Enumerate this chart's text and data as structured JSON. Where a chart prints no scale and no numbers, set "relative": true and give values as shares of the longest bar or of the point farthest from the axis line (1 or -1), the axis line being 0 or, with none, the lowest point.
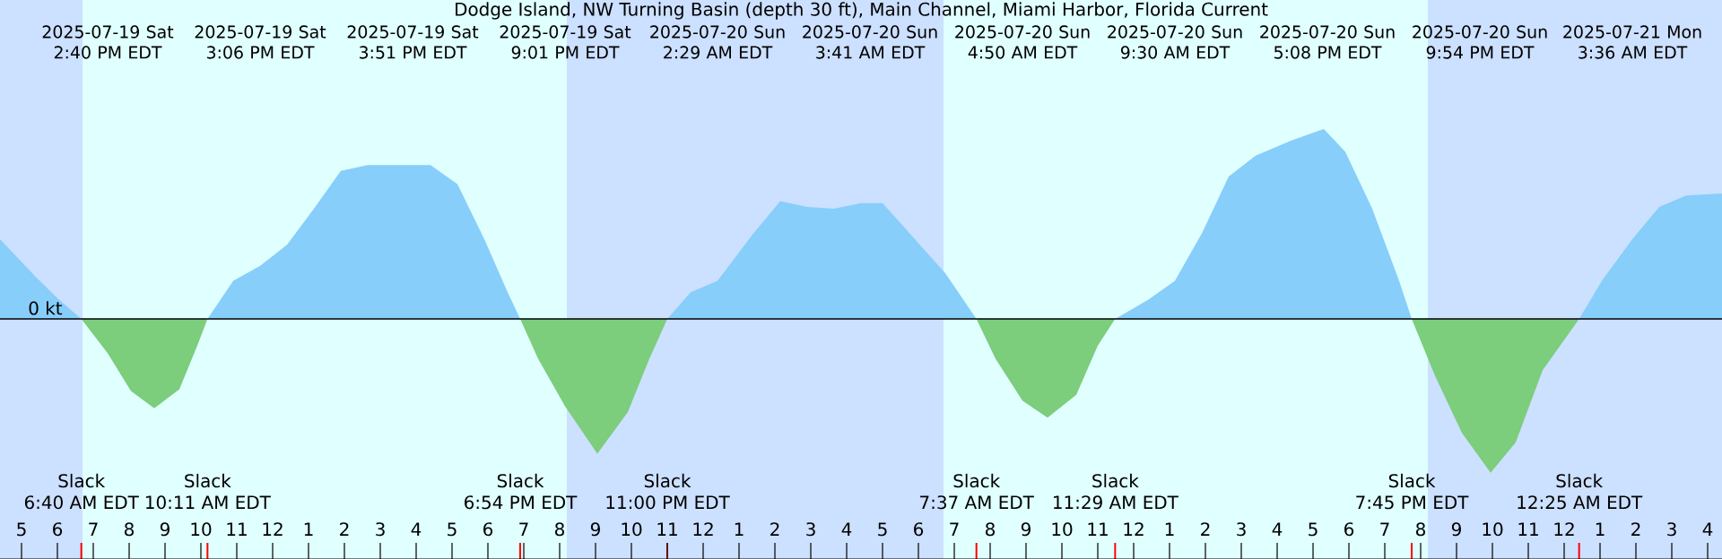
{
  "chart_data": {
    "type": "area",
    "relative": true,
    "title": "Dodge Island, NW Turning Basin (depth 30 ft), Main Channel, Miami Harbor, Florida Current",
    "xlim": [
      "2025-07-19T04:24",
      "2025-07-21T04:24"
    ],
    "xticks": [
      {
        "value": "2025-07-19T05:00",
        "label": "5"
      },
      {
        "value": "2025-07-19T06:00",
        "label": "6"
      },
      {
        "value": "2025-07-19T07:00",
        "label": "7"
      },
      {
        "value": "2025-07-19T08:00",
        "label": "8"
      },
      {
        "value": "2025-07-19T09:00",
        "label": "9"
      },
      {
        "value": "2025-07-19T10:00",
        "label": "10"
      },
      {
        "value": "2025-07-19T11:00",
        "label": "11"
      },
      {
        "value": "2025-07-19T12:00",
        "label": "12"
      },
      {
        "value": "2025-07-19T13:00",
        "label": "1"
      },
      {
        "value": "2025-07-19T14:00",
        "label": "2"
      },
      {
        "value": "2025-07-19T15:00",
        "label": "3"
      },
      {
        "value": "2025-07-19T16:00",
        "label": "4"
      },
      {
        "value": "2025-07-19T17:00",
        "label": "5"
      },
      {
        "value": "2025-07-19T18:00",
        "label": "6"
      },
      {
        "value": "2025-07-19T19:00",
        "label": "7"
      },
      {
        "value": "2025-07-19T20:00",
        "label": "8"
      },
      {
        "value": "2025-07-19T21:00",
        "label": "9"
      },
      {
        "value": "2025-07-19T22:00",
        "label": "10"
      },
      {
        "value": "2025-07-19T23:00",
        "label": "11"
      },
      {
        "value": "2025-07-20T00:00",
        "label": "12"
      },
      {
        "value": "2025-07-20T01:00",
        "label": "1"
      },
      {
        "value": "2025-07-20T02:00",
        "label": "2"
      },
      {
        "value": "2025-07-20T03:00",
        "label": "3"
      },
      {
        "value": "2025-07-20T04:00",
        "label": "4"
      },
      {
        "value": "2025-07-20T05:00",
        "label": "5"
      },
      {
        "value": "2025-07-20T06:00",
        "label": "6"
      },
      {
        "value": "2025-07-20T07:00",
        "label": "7"
      },
      {
        "value": "2025-07-20T08:00",
        "label": "8"
      },
      {
        "value": "2025-07-20T09:00",
        "label": "9"
      },
      {
        "value": "2025-07-20T10:00",
        "label": "10"
      },
      {
        "value": "2025-07-20T11:00",
        "label": "11"
      },
      {
        "value": "2025-07-20T12:00",
        "label": "12"
      },
      {
        "value": "2025-07-20T13:00",
        "label": "1"
      },
      {
        "value": "2025-07-20T14:00",
        "label": "2"
      },
      {
        "value": "2025-07-20T15:00",
        "label": "3"
      },
      {
        "value": "2025-07-20T16:00",
        "label": "4"
      },
      {
        "value": "2025-07-20T17:00",
        "label": "5"
      },
      {
        "value": "2025-07-20T18:00",
        "label": "6"
      },
      {
        "value": "2025-07-20T19:00",
        "label": "7"
      },
      {
        "value": "2025-07-20T20:00",
        "label": "8"
      },
      {
        "value": "2025-07-20T21:00",
        "label": "9"
      },
      {
        "value": "2025-07-20T22:00",
        "label": "10"
      },
      {
        "value": "2025-07-20T23:00",
        "label": "11"
      },
      {
        "value": "2025-07-21T00:00",
        "label": "12"
      },
      {
        "value": "2025-07-21T01:00",
        "label": "1"
      },
      {
        "value": "2025-07-21T02:00",
        "label": "2"
      },
      {
        "value": "2025-07-21T03:00",
        "label": "3"
      },
      {
        "value": "2025-07-21T04:00",
        "label": "4"
      }
    ],
    "bands": [
      {
        "axis": "x",
        "from": "2025-07-19T04:24",
        "to": "2025-07-19T06:42",
        "color": "#cce0ff"
      },
      {
        "axis": "x",
        "from": "2025-07-19T06:42",
        "to": "2025-07-19T20:12",
        "color": "#e0ffff"
      },
      {
        "axis": "x",
        "from": "2025-07-19T20:12",
        "to": "2025-07-20T06:42",
        "color": "#cce0ff"
      },
      {
        "axis": "x",
        "from": "2025-07-20T06:42",
        "to": "2025-07-20T20:12",
        "color": "#e0ffff"
      },
      {
        "axis": "x",
        "from": "2025-07-20T20:12",
        "to": "2025-07-21T04:24",
        "color": "#cce0ff"
      }
    ],
    "series": [
      {
        "color": "#87cefa",
        "x": [
          "2025-07-19T04:24",
          "2025-07-19T05:24",
          "2025-07-19T06:03",
          "2025-07-19T06:40",
          "2025-07-19T08:42",
          "2025-07-19T10:11",
          "2025-07-19T10:54",
          "2025-07-19T11:39",
          "2025-07-19T12:24",
          "2025-07-19T13:09",
          "2025-07-19T13:54",
          "2025-07-19T14:39",
          "2025-07-19T15:39",
          "2025-07-19T16:24",
          "2025-07-19T17:09",
          "2025-07-19T17:54",
          "2025-07-19T18:33",
          "2025-07-19T18:54",
          "2025-07-19T21:03",
          "2025-07-19T23:00",
          "2025-07-19T23:39",
          "2025-07-20T00:24",
          "2025-07-20T01:24",
          "2025-07-20T02:09",
          "2025-07-20T02:54",
          "2025-07-20T03:39",
          "2025-07-20T04:24",
          "2025-07-20T05:00",
          "2025-07-20T05:54",
          "2025-07-20T06:45",
          "2025-07-20T07:37",
          "2025-07-20T09:36",
          "2025-07-20T11:29",
          "2025-07-20T12:24",
          "2025-07-20T13:09",
          "2025-07-20T13:54",
          "2025-07-20T14:39",
          "2025-07-20T15:24",
          "2025-07-20T16:24",
          "2025-07-20T17:18",
          "2025-07-20T17:54",
          "2025-07-20T18:39",
          "2025-07-20T19:24",
          "2025-07-20T19:45",
          "2025-07-20T21:57",
          "2025-07-21T00:25",
          "2025-07-21T01:03",
          "2025-07-21T01:54",
          "2025-07-21T02:39",
          "2025-07-21T03:24",
          "2025-07-21T04:24"
        ],
        "values": [
          0.42,
          0.22,
          0.1,
          0,
          null,
          0,
          0.2,
          0.28,
          0.39,
          0.58,
          0.78,
          0.81,
          0.81,
          0.81,
          0.71,
          0.42,
          0.14,
          0,
          null,
          0,
          0.14,
          0.2,
          0.45,
          0.62,
          0.59,
          0.58,
          0.61,
          0.61,
          0.42,
          0.24,
          0,
          null,
          0,
          0.1,
          0.2,
          0.45,
          0.75,
          0.86,
          0.94,
          1.0,
          0.88,
          0.58,
          0.2,
          0,
          null,
          0,
          0.2,
          0.42,
          0.59,
          0.65,
          0.66
        ]
      },
      {
        "color": "#7ccd7c",
        "x": [
          "2025-07-19T06:40",
          "2025-07-19T07:24",
          "2025-07-19T08:03",
          "2025-07-19T08:42",
          "2025-07-19T09:24",
          "2025-07-19T09:54",
          "2025-07-19T10:11",
          "2025-07-19T14:39",
          "2025-07-19T18:54",
          "2025-07-19T19:24",
          "2025-07-19T20:09",
          "2025-07-19T21:03",
          "2025-07-19T21:54",
          "2025-07-19T22:30",
          "2025-07-19T23:00",
          "2025-07-20T04:24",
          "2025-07-20T07:37",
          "2025-07-20T08:09",
          "2025-07-20T08:54",
          "2025-07-20T09:36",
          "2025-07-20T10:24",
          "2025-07-20T11:00",
          "2025-07-20T11:29",
          "2025-07-20T16:24",
          "2025-07-20T19:45",
          "2025-07-20T20:24",
          "2025-07-20T21:09",
          "2025-07-20T21:57",
          "2025-07-20T22:39",
          "2025-07-20T23:24",
          "2025-07-21T00:25"
        ],
        "values": [
          0,
          -0.18,
          -0.38,
          -0.47,
          -0.37,
          -0.14,
          0,
          null,
          0,
          -0.21,
          -0.46,
          -0.71,
          -0.49,
          -0.21,
          0,
          null,
          0,
          -0.21,
          -0.43,
          -0.52,
          -0.4,
          -0.14,
          0,
          null,
          0,
          -0.3,
          -0.6,
          -0.81,
          -0.65,
          -0.27,
          0
        ]
      }
    ],
    "annotations": [
      "2025-07-19 Sat 2:40 PM EDT",
      "2025-07-19 Sat 3:06 PM EDT",
      "2025-07-19 Sat 3:51 PM EDT",
      "2025-07-19 Sat 9:01 PM EDT",
      "2025-07-20 Sun 2:29 AM EDT",
      "2025-07-20 Sun 3:41 AM EDT",
      "2025-07-20 Sun 4:50 AM EDT",
      "2025-07-20 Sun 9:30 AM EDT",
      "2025-07-20 Sun 5:08 PM EDT",
      "2025-07-20 Sun 9:54 PM EDT",
      "2025-07-21 Mon 3:36 AM EDT",
      {
        "text": "0 kt",
        "y": 0
      },
      "Slack",
      "6:40 AM EDT",
      "Slack",
      "10:11 AM EDT",
      "Slack",
      "6:54 PM EDT",
      "Slack",
      "11:00 PM EDT",
      "Slack",
      "7:37 AM EDT",
      "Slack",
      "11:29 AM EDT",
      "Slack",
      "7:45 PM EDT",
      "Slack",
      "12:25 AM EDT"
    ]
  }
}
